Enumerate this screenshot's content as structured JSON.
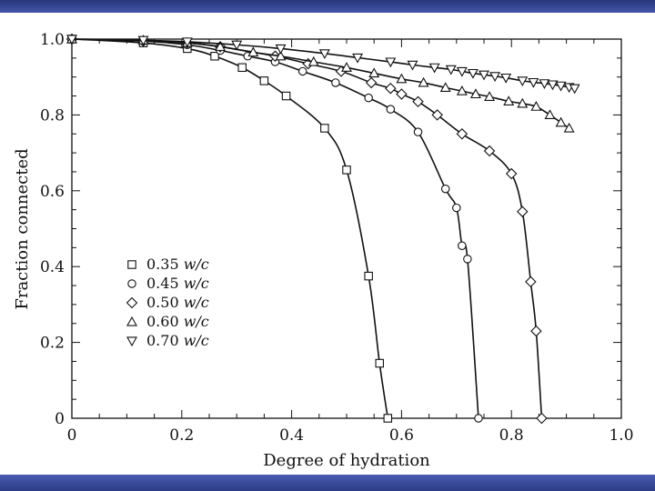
{
  "slide": {
    "top_band_color": "#3a4c9e",
    "bottom_band_color": "#3a4c9e"
  },
  "chart_data": {
    "type": "line",
    "title": "",
    "xlabel": "Degree of hydration",
    "ylabel": "Fraction connected",
    "xlim": [
      0,
      1.0
    ],
    "ylim": [
      0,
      1.0
    ],
    "grid": false,
    "legend_position": "lower-left",
    "x_ticks": [
      0,
      0.2,
      0.4,
      0.6,
      0.8,
      1.0
    ],
    "x_tick_labels": [
      "0",
      "0.2",
      "0.4",
      "0.6",
      "0.8",
      "1.0"
    ],
    "y_ticks": [
      0,
      0.2,
      0.4,
      0.6,
      0.8,
      1.0
    ],
    "y_tick_labels": [
      "0",
      "0.2",
      "0.4",
      "0.6",
      "0.8",
      "1.0"
    ],
    "series": [
      {
        "name": "0.35 w/c",
        "label_num": "0.35",
        "label_unit": "w/c",
        "marker": "square",
        "x": [
          0.0,
          0.13,
          0.21,
          0.26,
          0.31,
          0.35,
          0.39,
          0.46,
          0.5,
          0.54,
          0.56,
          0.575
        ],
        "y": [
          1.0,
          0.99,
          0.975,
          0.955,
          0.925,
          0.89,
          0.85,
          0.765,
          0.655,
          0.375,
          0.145,
          0.0
        ]
      },
      {
        "name": "0.45 w/c",
        "label_num": "0.45",
        "label_unit": "w/c",
        "marker": "circle",
        "x": [
          0.0,
          0.13,
          0.21,
          0.27,
          0.32,
          0.37,
          0.42,
          0.48,
          0.54,
          0.58,
          0.63,
          0.68,
          0.7,
          0.71,
          0.72,
          0.74
        ],
        "y": [
          1.0,
          0.995,
          0.985,
          0.97,
          0.955,
          0.94,
          0.915,
          0.885,
          0.845,
          0.815,
          0.755,
          0.605,
          0.555,
          0.455,
          0.42,
          0.0
        ]
      },
      {
        "name": "0.50 w/c",
        "label_num": "0.50",
        "label_unit": "w/c",
        "marker": "diamond",
        "x": [
          0.0,
          0.13,
          0.21,
          0.27,
          0.37,
          0.43,
          0.49,
          0.545,
          0.58,
          0.6,
          0.63,
          0.665,
          0.71,
          0.76,
          0.8,
          0.82,
          0.835,
          0.845,
          0.855
        ],
        "y": [
          1.0,
          0.995,
          0.99,
          0.98,
          0.955,
          0.935,
          0.915,
          0.885,
          0.87,
          0.855,
          0.835,
          0.8,
          0.75,
          0.705,
          0.645,
          0.545,
          0.36,
          0.23,
          0.0
        ]
      },
      {
        "name": "0.60 w/c",
        "label_num": "0.60",
        "label_unit": "w/c",
        "marker": "triangle-up",
        "x": [
          0.0,
          0.13,
          0.21,
          0.27,
          0.33,
          0.38,
          0.44,
          0.5,
          0.55,
          0.6,
          0.64,
          0.68,
          0.71,
          0.735,
          0.76,
          0.795,
          0.82,
          0.845,
          0.87,
          0.89,
          0.905
        ],
        "y": [
          1.0,
          0.997,
          0.99,
          0.98,
          0.965,
          0.955,
          0.94,
          0.925,
          0.91,
          0.895,
          0.885,
          0.872,
          0.863,
          0.855,
          0.848,
          0.836,
          0.83,
          0.822,
          0.8,
          0.78,
          0.765
        ]
      },
      {
        "name": "0.70 w/c",
        "label_num": "0.70",
        "label_unit": "w/c",
        "marker": "triangle-down",
        "x": [
          0.0,
          0.13,
          0.21,
          0.3,
          0.38,
          0.46,
          0.52,
          0.58,
          0.62,
          0.66,
          0.69,
          0.71,
          0.73,
          0.75,
          0.77,
          0.79,
          0.82,
          0.84,
          0.86,
          0.875,
          0.89,
          0.905,
          0.915
        ],
        "y": [
          1.0,
          0.997,
          0.993,
          0.985,
          0.975,
          0.962,
          0.951,
          0.94,
          0.932,
          0.925,
          0.92,
          0.915,
          0.91,
          0.906,
          0.902,
          0.898,
          0.89,
          0.886,
          0.883,
          0.88,
          0.877,
          0.873,
          0.87
        ]
      }
    ]
  }
}
